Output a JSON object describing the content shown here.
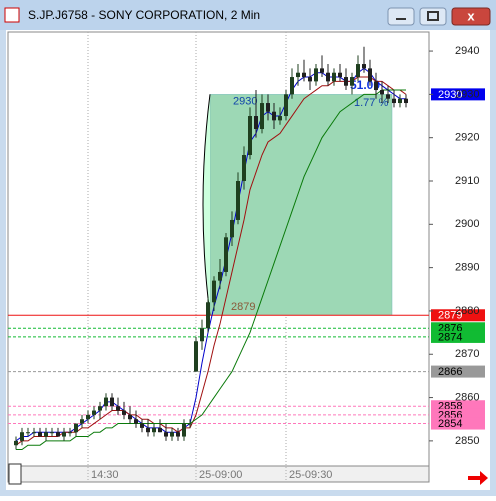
{
  "window_title": "S.JP.J6758 - SONY CORPORATION, 2 Min",
  "chart_data": {
    "type": "candlestick",
    "categories": [
      null,
      null,
      null,
      null,
      null,
      null,
      null,
      null,
      null,
      null,
      null,
      null,
      "14:30",
      null,
      null,
      null,
      null,
      null,
      null,
      null,
      null,
      null,
      null,
      null,
      null,
      null,
      null,
      null,
      null,
      null,
      "25-09:00",
      null,
      null,
      null,
      null,
      null,
      null,
      null,
      null,
      null,
      null,
      null,
      null,
      null,
      null,
      "25-09:30",
      null,
      null,
      null,
      null,
      null,
      null,
      null,
      null,
      null,
      null,
      null,
      null,
      null,
      null,
      null,
      null,
      null,
      null,
      null,
      null
    ],
    "open": [
      2849,
      2850,
      2852,
      2852,
      2852,
      2851,
      2852,
      2852,
      2851,
      2852,
      2852,
      2854,
      2855,
      2856,
      2857,
      2858,
      2860,
      2858,
      2857,
      2856,
      2855,
      2854,
      2853,
      2852,
      2853,
      2852,
      2851,
      2852,
      2851,
      2854,
      2866,
      2873,
      2876,
      2882,
      2887,
      2889,
      2897,
      2901,
      2910,
      2916,
      2925,
      2922,
      2928,
      2926,
      2924,
      2925,
      2930,
      2934,
      2935,
      2934,
      2933,
      2936,
      2935,
      2933,
      2935,
      2934,
      2932,
      2934,
      2937,
      2936,
      2933,
      2931,
      2930,
      2929,
      2928,
      2929
    ],
    "high": [
      2851,
      2853,
      2853,
      2853,
      2853,
      2853,
      2853,
      2853,
      2853,
      2853,
      2854,
      2856,
      2857,
      2858,
      2859,
      2861,
      2861,
      2860,
      2859,
      2858,
      2857,
      2855,
      2855,
      2854,
      2855,
      2854,
      2853,
      2853,
      2855,
      2855,
      2874,
      2878,
      2883,
      2888,
      2892,
      2898,
      2903,
      2912,
      2918,
      2927,
      2931,
      2930,
      2930,
      2928,
      2927,
      2931,
      2936,
      2937,
      2938,
      2936,
      2937,
      2939,
      2937,
      2936,
      2937,
      2936,
      2935,
      2939,
      2941,
      2938,
      2935,
      2933,
      2932,
      2931,
      2930,
      2930
    ],
    "low": [
      2848,
      2849,
      2851,
      2851,
      2851,
      2850,
      2851,
      2851,
      2850,
      2851,
      2851,
      2853,
      2854,
      2855,
      2855,
      2857,
      2857,
      2856,
      2855,
      2854,
      2853,
      2852,
      2851,
      2851,
      2852,
      2850,
      2850,
      2850,
      2850,
      2853,
      2866,
      2871,
      2875,
      2880,
      2885,
      2888,
      2895,
      2900,
      2908,
      2915,
      2920,
      2921,
      2924,
      2922,
      2923,
      2924,
      2929,
      2932,
      2933,
      2931,
      2932,
      2934,
      2932,
      2932,
      2933,
      2931,
      2930,
      2933,
      2935,
      2932,
      2929,
      2928,
      2928,
      2927,
      2927,
      2927
    ],
    "close": [
      2850,
      2852,
      2852,
      2852,
      2851,
      2852,
      2852,
      2851,
      2852,
      2852,
      2854,
      2855,
      2856,
      2857,
      2858,
      2860,
      2858,
      2857,
      2856,
      2855,
      2854,
      2853,
      2852,
      2853,
      2852,
      2851,
      2852,
      2851,
      2854,
      2854,
      2873,
      2876,
      2882,
      2887,
      2889,
      2897,
      2901,
      2910,
      2916,
      2925,
      2922,
      2928,
      2926,
      2924,
      2925,
      2930,
      2934,
      2935,
      2934,
      2933,
      2936,
      2935,
      2933,
      2935,
      2934,
      2932,
      2934,
      2937,
      2936,
      2933,
      2931,
      2930,
      2929,
      2928,
      2929,
      2928
    ],
    "up_color": "#1f3f1f",
    "down_color": "#202020",
    "overlays": [
      {
        "color": "#0000cc",
        "values": [
          2850,
          2851,
          2851,
          2852,
          2852,
          2852,
          2852,
          2852,
          2852,
          2852,
          2853,
          2854,
          2855,
          2856,
          2857,
          2859,
          2859,
          2858,
          2857,
          2856,
          2855,
          2854,
          2853,
          2853,
          2853,
          2852,
          2852,
          2852,
          2853,
          2854,
          2860,
          2868,
          2875,
          2881,
          2886,
          2892,
          2898,
          2905,
          2912,
          2919,
          2921,
          2925,
          2926,
          2925,
          2925,
          2928,
          2931,
          2933,
          2934,
          2934,
          2935,
          2935,
          2934,
          2934,
          2934,
          2933,
          2933,
          2935,
          2936,
          2935,
          2933,
          2932,
          2931,
          2930,
          2929,
          2929
        ]
      },
      {
        "color": "#a01010",
        "values": [
          2849,
          2850,
          2850,
          2851,
          2851,
          2851,
          2851,
          2851,
          2852,
          2852,
          2852,
          2853,
          2853,
          2854,
          2855,
          2856,
          2857,
          2857,
          2857,
          2856,
          2856,
          2855,
          2855,
          2854,
          2854,
          2853,
          2853,
          2852,
          2853,
          2853,
          2856,
          2861,
          2866,
          2872,
          2877,
          2883,
          2889,
          2895,
          2901,
          2908,
          2912,
          2916,
          2919,
          2920,
          2921,
          2923,
          2925,
          2927,
          2929,
          2930,
          2931,
          2932,
          2932,
          2933,
          2933,
          2933,
          2933,
          2934,
          2934,
          2934,
          2933,
          2933,
          2932,
          2931,
          2931,
          2930
        ]
      },
      {
        "color": "#0a7a0a",
        "values": [
          2848,
          2848,
          2849,
          2849,
          2849,
          2850,
          2850,
          2850,
          2850,
          2850,
          2851,
          2851,
          2851,
          2852,
          2852,
          2853,
          2853,
          2854,
          2854,
          2854,
          2854,
          2854,
          2854,
          2854,
          2854,
          2854,
          2854,
          2854,
          2854,
          2854,
          2855,
          2856,
          2858,
          2860,
          2862,
          2864,
          2866,
          2869,
          2872,
          2875,
          2879,
          2883,
          2887,
          2891,
          2895,
          2899,
          2903,
          2907,
          2911,
          2914,
          2917,
          2920,
          2922,
          2924,
          2926,
          2927,
          2928,
          2929,
          2930,
          2930,
          2930,
          2931,
          2931,
          2931,
          2931,
          2931
        ]
      }
    ],
    "levels": [
      {
        "value": 2930,
        "color": "#0000ee",
        "line": false
      },
      {
        "value": 2879,
        "color": "#ee1111",
        "line": true
      },
      {
        "value": 2876,
        "color": "#11bb33",
        "line": true
      },
      {
        "value": 2874,
        "color": "#11bb33",
        "line": true
      },
      {
        "value": 2866,
        "color": "#999999",
        "line": true
      },
      {
        "value": 2858,
        "color": "#ff77bb",
        "line": true
      },
      {
        "value": 2856,
        "color": "#ff77bb",
        "line": true
      },
      {
        "value": 2854,
        "color": "#ff77bb",
        "line": true
      }
    ],
    "measure": {
      "from": 2879,
      "to": 2930,
      "change": "51.00",
      "percent": "1.77 %"
    },
    "ylim": [
      2844.2,
      2944.4
    ],
    "yticks": [
      2850,
      2860,
      2870,
      2880,
      2890,
      2900,
      2910,
      2920,
      2930,
      2940
    ]
  }
}
